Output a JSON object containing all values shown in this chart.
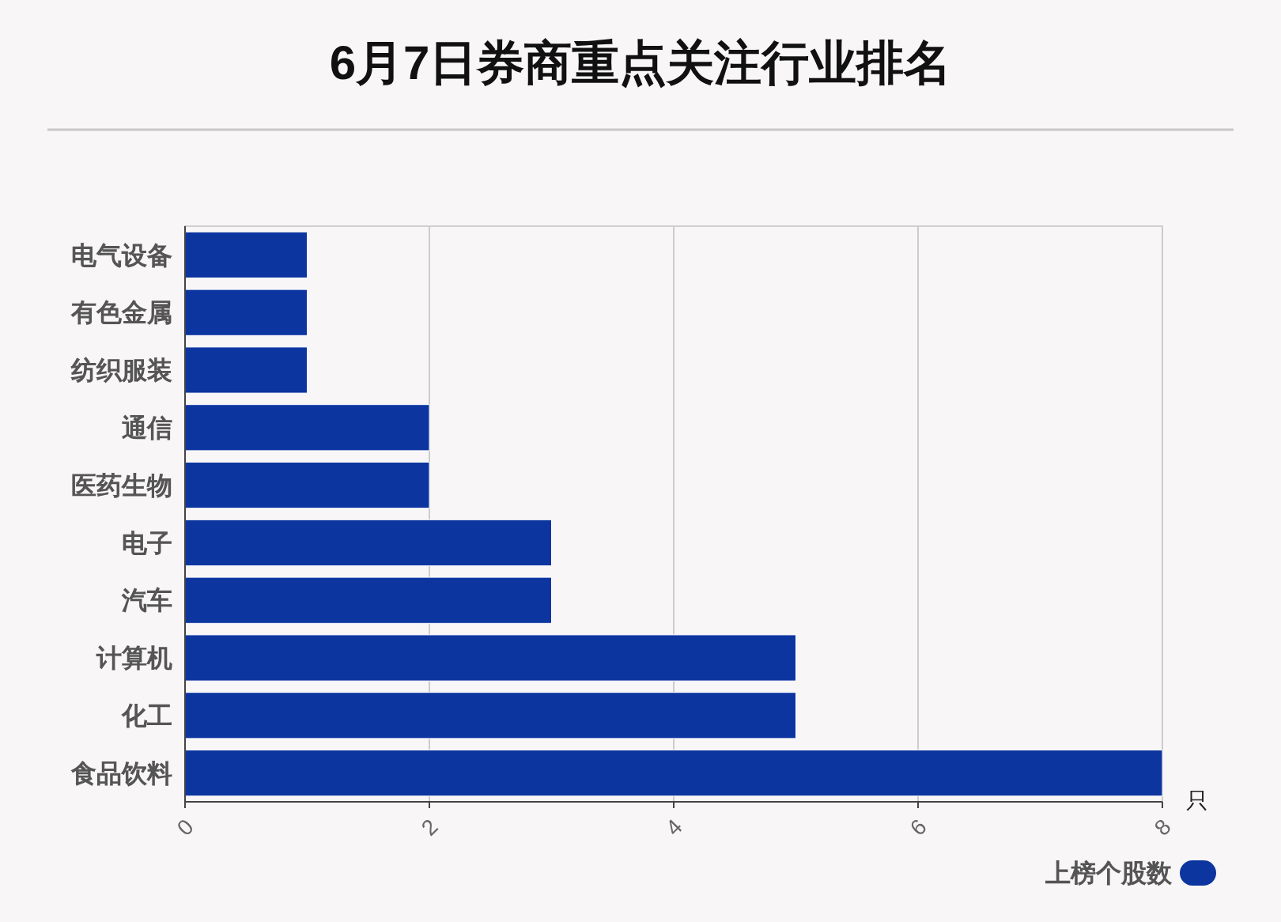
{
  "chart_data": {
    "type": "bar",
    "title": "6月7日券商重点关注行业排名",
    "orientation": "horizontal",
    "categories": [
      "电气设备",
      "有色金属",
      "纺织服装",
      "通信",
      "医药生物",
      "电子",
      "汽车",
      "计算机",
      "化工",
      "食品饮料"
    ],
    "series": [
      {
        "name": "上榜个股数",
        "color": "#0d35a0",
        "values": [
          1,
          1,
          1,
          2,
          2,
          3,
          3,
          5,
          5,
          8
        ]
      }
    ],
    "xlabel": "只",
    "xlim": [
      0,
      8
    ],
    "xticks": [
      0,
      2,
      4,
      6,
      8
    ],
    "grid": "x",
    "legend": "bottom right"
  }
}
